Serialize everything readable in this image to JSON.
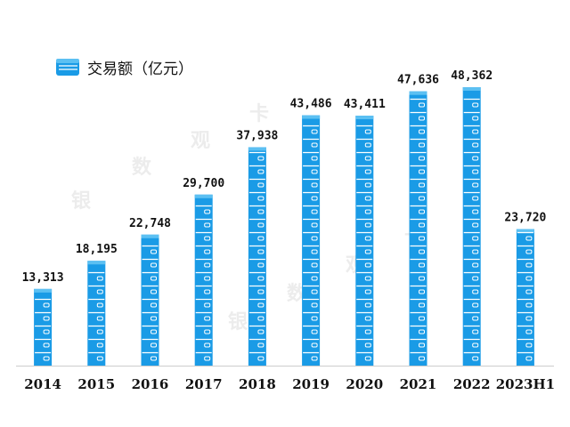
{
  "legend": {
    "label": "交易额（亿元）",
    "icon": "wallet-icon"
  },
  "watermark": {
    "chars": [
      "银",
      "数",
      "观",
      "卡"
    ]
  },
  "colors": {
    "bar": "#1a9be6",
    "bar_light": "#5cc0f2",
    "line": "#ffffff",
    "axis": "#cccccc",
    "text": "#111111"
  },
  "chart_data": {
    "type": "bar",
    "title": "",
    "xlabel": "",
    "ylabel": "交易额（亿元）",
    "ylim": [
      0,
      48362
    ],
    "grid": false,
    "legend_position": "top-left",
    "categories": [
      "2014",
      "2015",
      "2016",
      "2017",
      "2018",
      "2019",
      "2020",
      "2021",
      "2022",
      "2023H1"
    ],
    "series": [
      {
        "name": "交易额（亿元）",
        "values": [
          13313,
          18195,
          22748,
          29700,
          37938,
          43486,
          43411,
          47636,
          48362,
          23720
        ],
        "labels": [
          "13,313",
          "18,195",
          "22,748",
          "29,700",
          "37,938",
          "43,486",
          "43,411",
          "47,636",
          "48,362",
          "23,720"
        ]
      }
    ]
  }
}
